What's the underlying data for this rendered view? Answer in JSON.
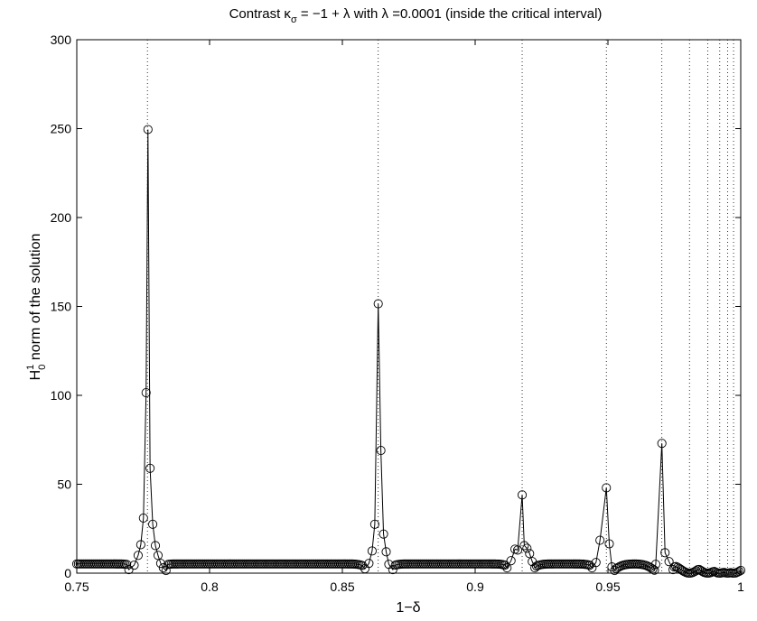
{
  "chart_data": {
    "type": "line",
    "title": "Contrast κ",
    "title_sub": "σ",
    "title_rest": " = −1 + λ with λ =0.0001 (inside the critical interval)",
    "xlabel": "1−δ",
    "ylabel_main": "H",
    "ylabel_sup": "1",
    "ylabel_sub": "0",
    "ylabel_rest": " norm of the solution",
    "xlim": [
      0.75,
      1.0
    ],
    "ylim": [
      0,
      300
    ],
    "xticks": [
      0.75,
      0.8,
      0.85,
      0.9,
      0.95,
      1.0
    ],
    "xtick_labels": [
      "0.75",
      "0.8",
      "0.85",
      "0.9",
      "0.95",
      "1"
    ],
    "yticks": [
      0,
      50,
      100,
      150,
      200,
      250,
      300
    ],
    "ytick_labels": [
      "0",
      "50",
      "100",
      "150",
      "200",
      "250",
      "300"
    ],
    "vertical_dotted_lines": [
      0.7766,
      0.8635,
      0.9177,
      0.9494,
      0.9703,
      0.9807,
      0.9876,
      0.9921,
      0.9951,
      0.9973
    ],
    "series": [
      {
        "marker": "circle",
        "line_color": "#000000",
        "peaks": [
          {
            "x0": 0.7766,
            "points": [
              [
                0.7696,
                2.0
              ],
              [
                0.7716,
                4.5
              ],
              [
                0.7731,
                10.0
              ],
              [
                0.7741,
                16.0
              ],
              [
                0.7751,
                31.0
              ],
              [
                0.7761,
                101.5
              ],
              [
                0.7768,
                249.5
              ],
              [
                0.7776,
                59.0
              ],
              [
                0.7786,
                27.5
              ],
              [
                0.7796,
                15.5
              ],
              [
                0.7806,
                10.0
              ],
              [
                0.7816,
                5.5
              ],
              [
                0.7826,
                3.0
              ],
              [
                0.7836,
                1.5
              ]
            ]
          },
          {
            "x0": 0.8635,
            "points": [
              [
                0.8585,
                2.5
              ],
              [
                0.86,
                5.5
              ],
              [
                0.8612,
                12.5
              ],
              [
                0.8622,
                27.5
              ],
              [
                0.8635,
                151.5
              ],
              [
                0.8645,
                69.0
              ],
              [
                0.8655,
                22.0
              ],
              [
                0.8665,
                12.0
              ],
              [
                0.8675,
                5.0
              ],
              [
                0.869,
                2.0
              ]
            ]
          },
          {
            "x0": 0.9177,
            "points": [
              [
                0.912,
                3.0
              ],
              [
                0.9135,
                7.0
              ],
              [
                0.915,
                13.5
              ],
              [
                0.916,
                13.0
              ],
              [
                0.9177,
                44.0
              ],
              [
                0.9185,
                15.5
              ],
              [
                0.9195,
                14.0
              ],
              [
                0.9205,
                11.0
              ],
              [
                0.9215,
                6.5
              ],
              [
                0.9225,
                3.0
              ]
            ]
          },
          {
            "x0": 0.9494,
            "points": [
              [
                0.944,
                3.0
              ],
              [
                0.9455,
                6.0
              ],
              [
                0.947,
                18.5
              ],
              [
                0.9494,
                48.0
              ],
              [
                0.9505,
                16.5
              ],
              [
                0.9515,
                3.5
              ],
              [
                0.9525,
                1.5
              ]
            ]
          },
          {
            "x0": 0.9703,
            "points": [
              [
                0.968,
                5.0
              ],
              [
                0.9703,
                73.0
              ],
              [
                0.9715,
                11.5
              ],
              [
                0.973,
                6.5
              ],
              [
                0.9745,
                2.0
              ]
            ]
          }
        ]
      }
    ]
  }
}
